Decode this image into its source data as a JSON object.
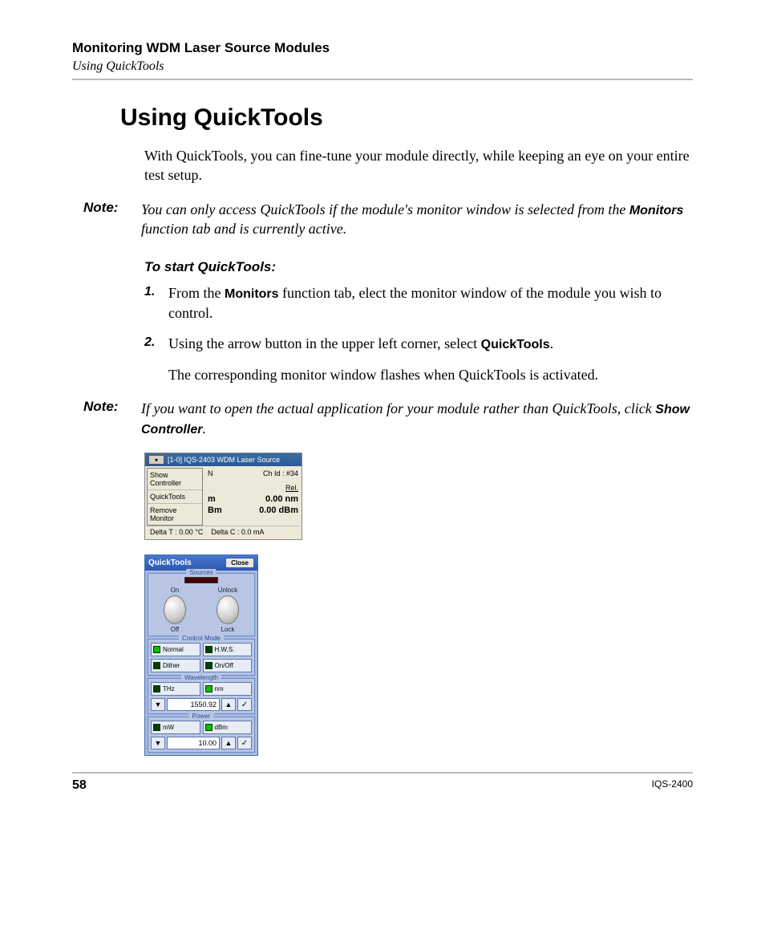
{
  "header": {
    "chapter": "Monitoring WDM Laser Source Modules",
    "section": "Using QuickTools"
  },
  "title": "Using QuickTools",
  "intro": "With QuickTools, you can fine-tune your module directly, while keeping an eye on your entire test setup.",
  "note1": {
    "label": "Note:",
    "pre": "You can only access QuickTools if the module's monitor window is selected from the ",
    "bold": "Monitors",
    "post": " function tab and is currently active."
  },
  "subhead": "To start QuickTools:",
  "steps": [
    {
      "num": "1.",
      "pre": "From the ",
      "bold": "Monitors",
      "post": " function tab, elect the monitor window of the module you wish to control."
    },
    {
      "num": "2.",
      "pre": "Using the arrow button in the upper left corner, select ",
      "bold": "QuickTools",
      "post": ".",
      "p2": "The corresponding monitor window flashes when QuickTools is activated."
    }
  ],
  "note2": {
    "label": "Note:",
    "pre": "If you want to open the actual application for your module rather than QuickTools, click ",
    "bold": "Show Controller",
    "post": "."
  },
  "monitor": {
    "title": "[1-0] IQS-2403 WDM Laser Source",
    "menu": [
      "Show Controller",
      "QuickTools",
      "Remove Monitor"
    ],
    "ch_lbl": "Ch Id : #34",
    "rel_lbl": "Rel.",
    "n_lbl": "N",
    "m_suffix": "m",
    "bm_suffix": "Bm",
    "rel_nm": "0.00 nm",
    "rel_dbm": "0.00 dBm",
    "delta_t_lbl": "Delta T :",
    "delta_t_val": "0.00 °C",
    "delta_c_lbl": "Delta C :",
    "delta_c_val": "0.0 mA"
  },
  "quicktools": {
    "title": "QuickTools",
    "close": "Close",
    "sources": {
      "label": "Sources",
      "on": "On",
      "off": "Off",
      "unlock": "Unlock",
      "lock": "Lock"
    },
    "control_mode": {
      "label": "Control Mode",
      "buttons": [
        {
          "label": "Normal",
          "on": true
        },
        {
          "label": "H.W.S.",
          "on": false
        },
        {
          "label": "Dither",
          "on": false
        },
        {
          "label": "On/Off",
          "on": false
        }
      ]
    },
    "wavelength": {
      "label": "Wavelength",
      "units": [
        {
          "label": "THz",
          "on": false
        },
        {
          "label": "nm",
          "on": true
        }
      ],
      "value": "1550.92"
    },
    "power": {
      "label": "Power",
      "units": [
        {
          "label": "mW",
          "on": false
        },
        {
          "label": "dBm",
          "on": true
        }
      ],
      "value": "10.00"
    }
  },
  "footer": {
    "page": "58",
    "model": "IQS-2400"
  }
}
